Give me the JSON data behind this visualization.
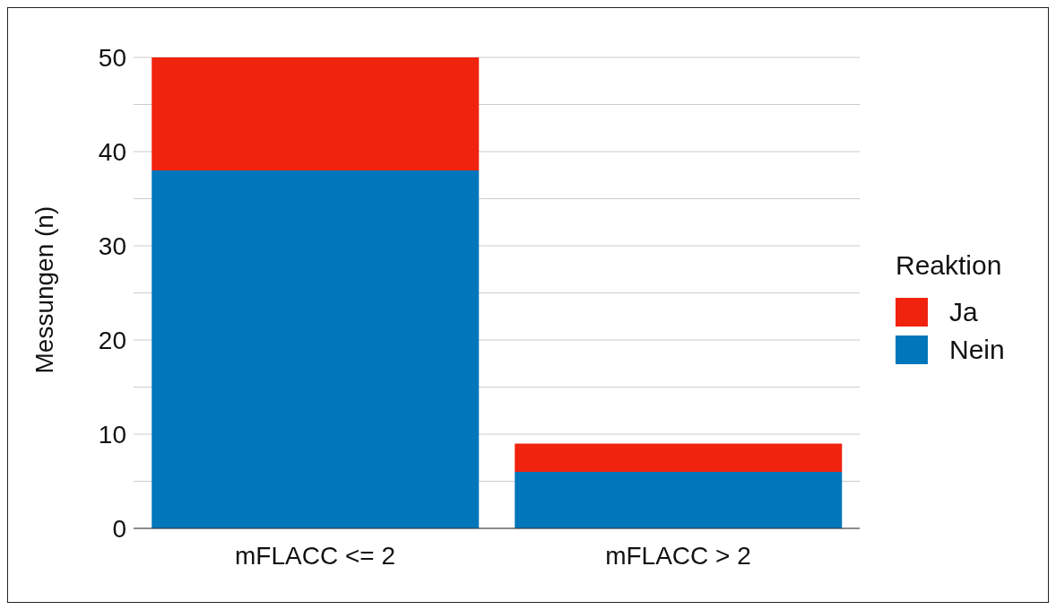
{
  "chart_data": {
    "type": "bar",
    "stacked": true,
    "categories": [
      "mFLACC <= 2",
      "mFLACC > 2"
    ],
    "series": [
      {
        "name": "Nein",
        "color": "#0077bb",
        "values": [
          38,
          6
        ]
      },
      {
        "name": "Ja",
        "color": "#f0230f",
        "values": [
          12,
          3
        ]
      }
    ],
    "ylabel": "Messungen (n)",
    "legend_title": "Reaktion",
    "legend": "right",
    "grid": "y",
    "ylim": [
      0,
      50
    ],
    "yticks": [
      0,
      {
        "value": 5,
        "label": null
      },
      10,
      {
        "value": 15,
        "label": null
      },
      20,
      {
        "value": 25,
        "label": null
      },
      30,
      {
        "value": 35,
        "label": null
      },
      40,
      {
        "value": 45,
        "label": null
      },
      50
    ]
  }
}
